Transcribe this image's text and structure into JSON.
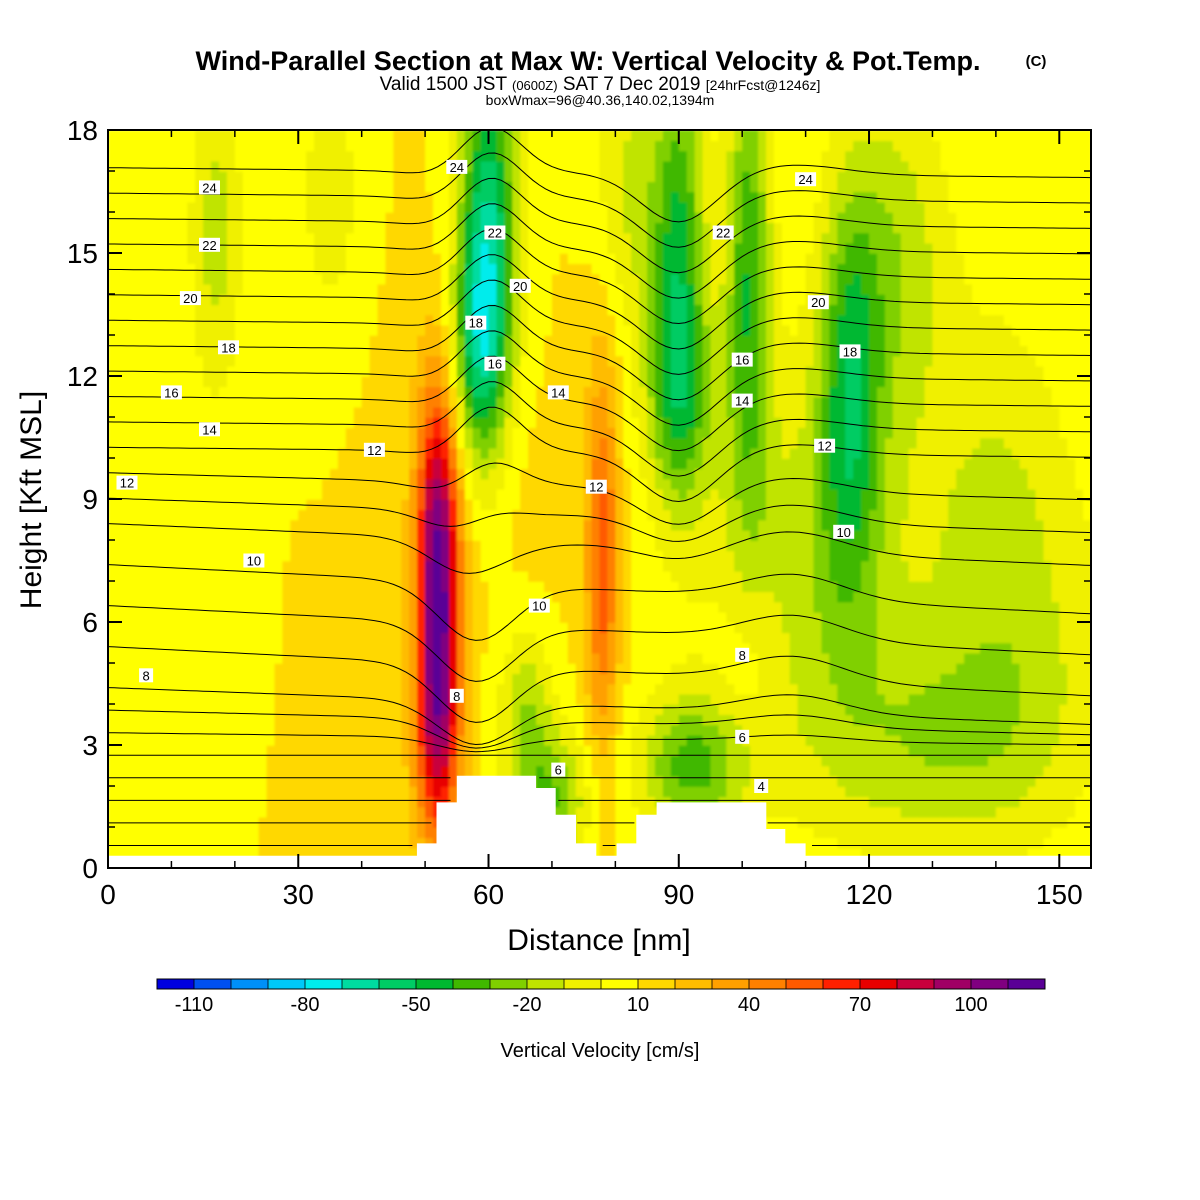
{
  "chart_data": {
    "type": "heatmap",
    "title": {
      "main": "Wind-Parallel Section at Max W: Vertical Velocity & Pot.Temp.",
      "copyright": "(C)",
      "valid_prefix": "Valid 1500 JST",
      "valid_utc": "(0600Z)",
      "valid_date": "SAT 7 Dec 2019",
      "valid_fcst": "[24hrFcst@1246z]",
      "box_max": "boxWmax=96@40.36,140.02,1394m"
    },
    "xlabel": "Distance [nm]",
    "ylabel": "Height [Kft MSL]",
    "xlim": [
      0,
      155
    ],
    "ylim": [
      0,
      18
    ],
    "xticks": [
      0,
      30,
      60,
      90,
      120,
      150
    ],
    "yticks": [
      0,
      3,
      6,
      9,
      12,
      15,
      18
    ],
    "background_value": 10,
    "velocity_features": [
      {
        "x": 52,
        "y": 7.5,
        "sx": 2.2,
        "sy": 2.8,
        "value": 96
      },
      {
        "x": 52,
        "y": 3.3,
        "sx": 2.5,
        "sy": 2.2,
        "value": 72
      },
      {
        "x": 53,
        "y": 9.5,
        "sx": 3.5,
        "sy": 3.0,
        "value": 25
      },
      {
        "x": 48,
        "y": 6.2,
        "sx": 5.0,
        "sy": 4.0,
        "value": 12
      },
      {
        "x": 30,
        "y": 6.5,
        "sx": 12.0,
        "sy": 2.5,
        "value": 10
      },
      {
        "x": 78,
        "y": 7.5,
        "sx": 1.8,
        "sy": 3.2,
        "value": 55
      },
      {
        "x": 76,
        "y": 8.5,
        "sx": 4.5,
        "sy": 4.0,
        "value": 12
      },
      {
        "x": 101,
        "y": 5.0,
        "sx": 4.0,
        "sy": 1.5,
        "value": 22
      },
      {
        "x": 66,
        "y": 9.0,
        "sx": 3.5,
        "sy": 2.0,
        "value": 14
      },
      {
        "x": 60,
        "y": 15.5,
        "sx": 3.2,
        "sy": 3.2,
        "value": -58
      },
      {
        "x": 58,
        "y": 12.5,
        "sx": 3.0,
        "sy": 2.0,
        "value": -32
      },
      {
        "x": 90,
        "y": 15.0,
        "sx": 3.0,
        "sy": 3.5,
        "value": -40
      },
      {
        "x": 90,
        "y": 11.5,
        "sx": 4.0,
        "sy": 1.8,
        "value": -20
      },
      {
        "x": 101,
        "y": 14.5,
        "sx": 2.5,
        "sy": 4.0,
        "value": -38
      },
      {
        "x": 117,
        "y": 11.5,
        "sx": 3.5,
        "sy": 3.5,
        "value": -36
      },
      {
        "x": 110,
        "y": 7.5,
        "sx": 12.0,
        "sy": 3.5,
        "value": -14
      },
      {
        "x": 130,
        "y": 3.0,
        "sx": 14.0,
        "sy": 2.0,
        "value": -14
      },
      {
        "x": 143,
        "y": 8.0,
        "sx": 10.0,
        "sy": 4.0,
        "value": -16
      },
      {
        "x": 92,
        "y": 2.5,
        "sx": 6.0,
        "sy": 1.2,
        "value": -32
      },
      {
        "x": 70,
        "y": 1.6,
        "sx": 4.0,
        "sy": 1.2,
        "value": -28
      },
      {
        "x": 66,
        "y": 3.8,
        "sx": 3.0,
        "sy": 1.5,
        "value": -18
      },
      {
        "x": 17,
        "y": 15.5,
        "sx": 3.0,
        "sy": 3.0,
        "value": -14
      },
      {
        "x": 35,
        "y": 16.5,
        "sx": 3.0,
        "sy": 2.0,
        "value": -10
      },
      {
        "x": 82,
        "y": 16.5,
        "sx": 4.0,
        "sy": 2.5,
        "value": -12
      },
      {
        "x": 124,
        "y": 15.0,
        "sx": 6.0,
        "sy": 3.0,
        "value": -16
      },
      {
        "x": 150,
        "y": 10.0,
        "sx": 6.0,
        "sy": 3.0,
        "value": 16
      },
      {
        "x": 78,
        "y": 13.5,
        "sx": 3.0,
        "sy": 2.5,
        "value": 14
      },
      {
        "x": 150,
        "y": 4.5,
        "sx": 8.0,
        "sy": 2.0,
        "value": 8
      }
    ],
    "terrain": [
      [
        0,
        0.3
      ],
      [
        48.7,
        0.3
      ],
      [
        48.7,
        0.6
      ],
      [
        51.8,
        0.6
      ],
      [
        51.8,
        1.6
      ],
      [
        55.0,
        1.6
      ],
      [
        55.0,
        2.25
      ],
      [
        67.5,
        2.25
      ],
      [
        67.5,
        1.95
      ],
      [
        70.6,
        1.95
      ],
      [
        70.6,
        1.3
      ],
      [
        73.8,
        1.3
      ],
      [
        73.8,
        0.6
      ],
      [
        77.0,
        0.6
      ],
      [
        77.0,
        0.3
      ],
      [
        80.2,
        0.3
      ],
      [
        80.2,
        0.6
      ],
      [
        83.3,
        0.6
      ],
      [
        83.3,
        1.3
      ],
      [
        86.5,
        1.3
      ],
      [
        86.5,
        1.6
      ],
      [
        103.8,
        1.6
      ],
      [
        103.8,
        0.95
      ],
      [
        106.8,
        0.95
      ],
      [
        106.8,
        0.6
      ],
      [
        110.0,
        0.6
      ],
      [
        110.0,
        0.3
      ],
      [
        155,
        0.3
      ]
    ],
    "theta_contours": {
      "values": [
        1,
        2,
        3,
        4,
        5,
        6,
        7,
        8,
        9,
        10,
        11,
        12,
        13,
        14,
        15,
        16,
        17,
        18,
        19,
        20,
        21,
        22,
        23,
        24,
        25,
        26
      ],
      "labeled": [
        {
          "text": "24",
          "x": 16,
          "y": 16.6
        },
        {
          "text": "22",
          "x": 16,
          "y": 15.2
        },
        {
          "text": "20",
          "x": 13,
          "y": 13.9
        },
        {
          "text": "18",
          "x": 19,
          "y": 12.7
        },
        {
          "text": "16",
          "x": 10,
          "y": 11.6
        },
        {
          "text": "14",
          "x": 16,
          "y": 10.7
        },
        {
          "text": "12",
          "x": 3,
          "y": 9.4
        },
        {
          "text": "10",
          "x": 23,
          "y": 7.5
        },
        {
          "text": "8",
          "x": 6,
          "y": 4.7
        },
        {
          "text": "12",
          "x": 42,
          "y": 10.2
        },
        {
          "text": "24",
          "x": 55,
          "y": 17.1
        },
        {
          "text": "22",
          "x": 61,
          "y": 15.5
        },
        {
          "text": "20",
          "x": 65,
          "y": 14.2
        },
        {
          "text": "18",
          "x": 58,
          "y": 13.3
        },
        {
          "text": "16",
          "x": 61,
          "y": 12.3
        },
        {
          "text": "14",
          "x": 71,
          "y": 11.6
        },
        {
          "text": "12",
          "x": 77,
          "y": 9.3
        },
        {
          "text": "10",
          "x": 68,
          "y": 6.4
        },
        {
          "text": "8",
          "x": 55,
          "y": 4.2
        },
        {
          "text": "6",
          "x": 71,
          "y": 2.4
        },
        {
          "text": "24",
          "x": 110,
          "y": 16.8
        },
        {
          "text": "22",
          "x": 97,
          "y": 15.5
        },
        {
          "text": "20",
          "x": 112,
          "y": 13.8
        },
        {
          "text": "18",
          "x": 117,
          "y": 12.6
        },
        {
          "text": "16",
          "x": 100,
          "y": 12.4
        },
        {
          "text": "14",
          "x": 100,
          "y": 11.4
        },
        {
          "text": "12",
          "x": 113,
          "y": 10.3
        },
        {
          "text": "10",
          "x": 116,
          "y": 8.2
        },
        {
          "text": "8",
          "x": 100,
          "y": 5.2
        },
        {
          "text": "6",
          "x": 100,
          "y": 3.2
        },
        {
          "text": "4",
          "x": 103,
          "y": 2.0
        }
      ]
    },
    "colorbar": {
      "label": "Vertical Velocity [cm/s]",
      "tick_labels": [
        "-110",
        "-80",
        "-50",
        "-20",
        "10",
        "40",
        "70",
        "100"
      ],
      "min": -120,
      "max": 120,
      "step": 10,
      "colors": [
        "#0000e0",
        "#0050f0",
        "#0090f8",
        "#00c8f8",
        "#00ecec",
        "#00dca0",
        "#00cc64",
        "#00b830",
        "#40b800",
        "#80d000",
        "#c0e400",
        "#f0f000",
        "#ffff00",
        "#ffd800",
        "#ffbc00",
        "#ffa000",
        "#ff8000",
        "#ff5a00",
        "#ff2000",
        "#e80000",
        "#c8003c",
        "#a00064",
        "#800080",
        "#5a0096"
      ]
    }
  }
}
